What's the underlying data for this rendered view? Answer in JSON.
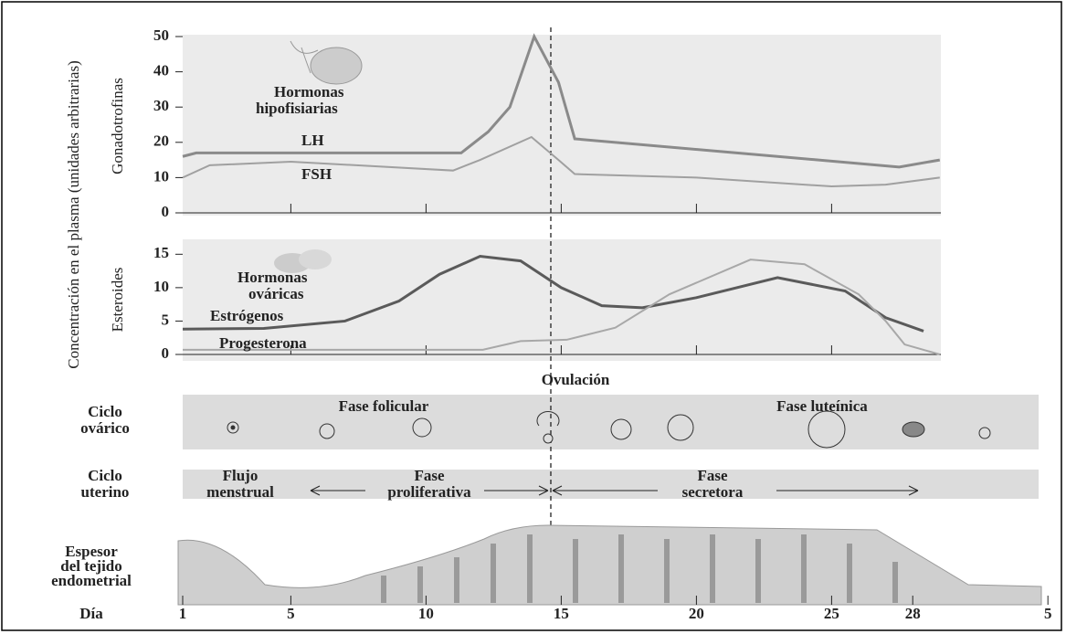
{
  "chart_data": [
    {
      "type": "line",
      "ylabel": "Gonadotrofinas",
      "annotation": [
        "Hormonas",
        "hipofisiarias"
      ],
      "ylim": [
        0,
        50
      ],
      "yticks": [
        0,
        10,
        20,
        30,
        40,
        50
      ],
      "xlim": [
        1,
        29
      ],
      "xticks": [
        5,
        10,
        15,
        20,
        25
      ],
      "series": [
        {
          "name": "LH",
          "color": "#8a8a8a",
          "x": [
            1,
            1.5,
            5,
            11.3,
            12.3,
            13.1,
            14,
            14.9,
            15.5,
            27.5,
            29
          ],
          "values": [
            16,
            17,
            17,
            17,
            23,
            30,
            50,
            37,
            21,
            13,
            15
          ]
        },
        {
          "name": "FSH",
          "color": "#a0a0a0",
          "x": [
            1,
            2,
            5,
            11,
            12,
            13.9,
            14.9,
            15.5,
            20,
            25,
            27,
            29
          ],
          "values": [
            10,
            13.5,
            14.5,
            12,
            15,
            21.5,
            15,
            11,
            10,
            7.5,
            8,
            10
          ]
        }
      ]
    },
    {
      "type": "line",
      "ylabel": "Esteroides",
      "annotation": [
        "Hormonas",
        "ováricas"
      ],
      "ylim": [
        0,
        16
      ],
      "yticks": [
        0,
        5,
        10,
        15
      ],
      "xlim": [
        1,
        29
      ],
      "xticks": [
        5,
        10,
        15,
        20,
        25
      ],
      "series": [
        {
          "name": "Estrógenos",
          "color": "#5a5a5a",
          "x": [
            1,
            4,
            7,
            9,
            10.5,
            12,
            13.5,
            15,
            16.5,
            18,
            20,
            23,
            25.5,
            27,
            28.4
          ],
          "values": [
            3.8,
            3.9,
            5,
            8,
            12,
            14.7,
            14,
            10,
            7.3,
            7,
            8.5,
            11.5,
            9.5,
            5.5,
            3.5
          ]
        },
        {
          "name": "Progesterona",
          "color": "#a8a8a8",
          "x": [
            1,
            12.1,
            13.5,
            15.2,
            17,
            19,
            22,
            24,
            26,
            27,
            27.7,
            29
          ],
          "values": [
            0.7,
            0.7,
            2,
            2.2,
            4,
            9,
            14.2,
            13.5,
            9,
            5,
            1.5,
            0
          ]
        }
      ]
    }
  ],
  "ylabel": "Concentración en el plasma (unidades arbitrarias)",
  "ovulation": "Ovulación",
  "ovarian": {
    "label": [
      "Ciclo",
      "ovárico"
    ],
    "phases": [
      "Fase folicular",
      "Fase luteínica"
    ]
  },
  "uterine": {
    "label": [
      "Ciclo",
      "uterino"
    ],
    "phases": [
      [
        "Flujo",
        "menstrual"
      ],
      [
        "Fase",
        "proliferativa"
      ],
      [
        "Fase",
        "secretora"
      ]
    ]
  },
  "endometrium": [
    "Espesor",
    "del tejido",
    "endometrial"
  ],
  "day_axis": {
    "label": "Día",
    "ticks": [
      1,
      5,
      10,
      15,
      20,
      25,
      28,
      {
        "value": 33,
        "label": "5"
      }
    ]
  }
}
